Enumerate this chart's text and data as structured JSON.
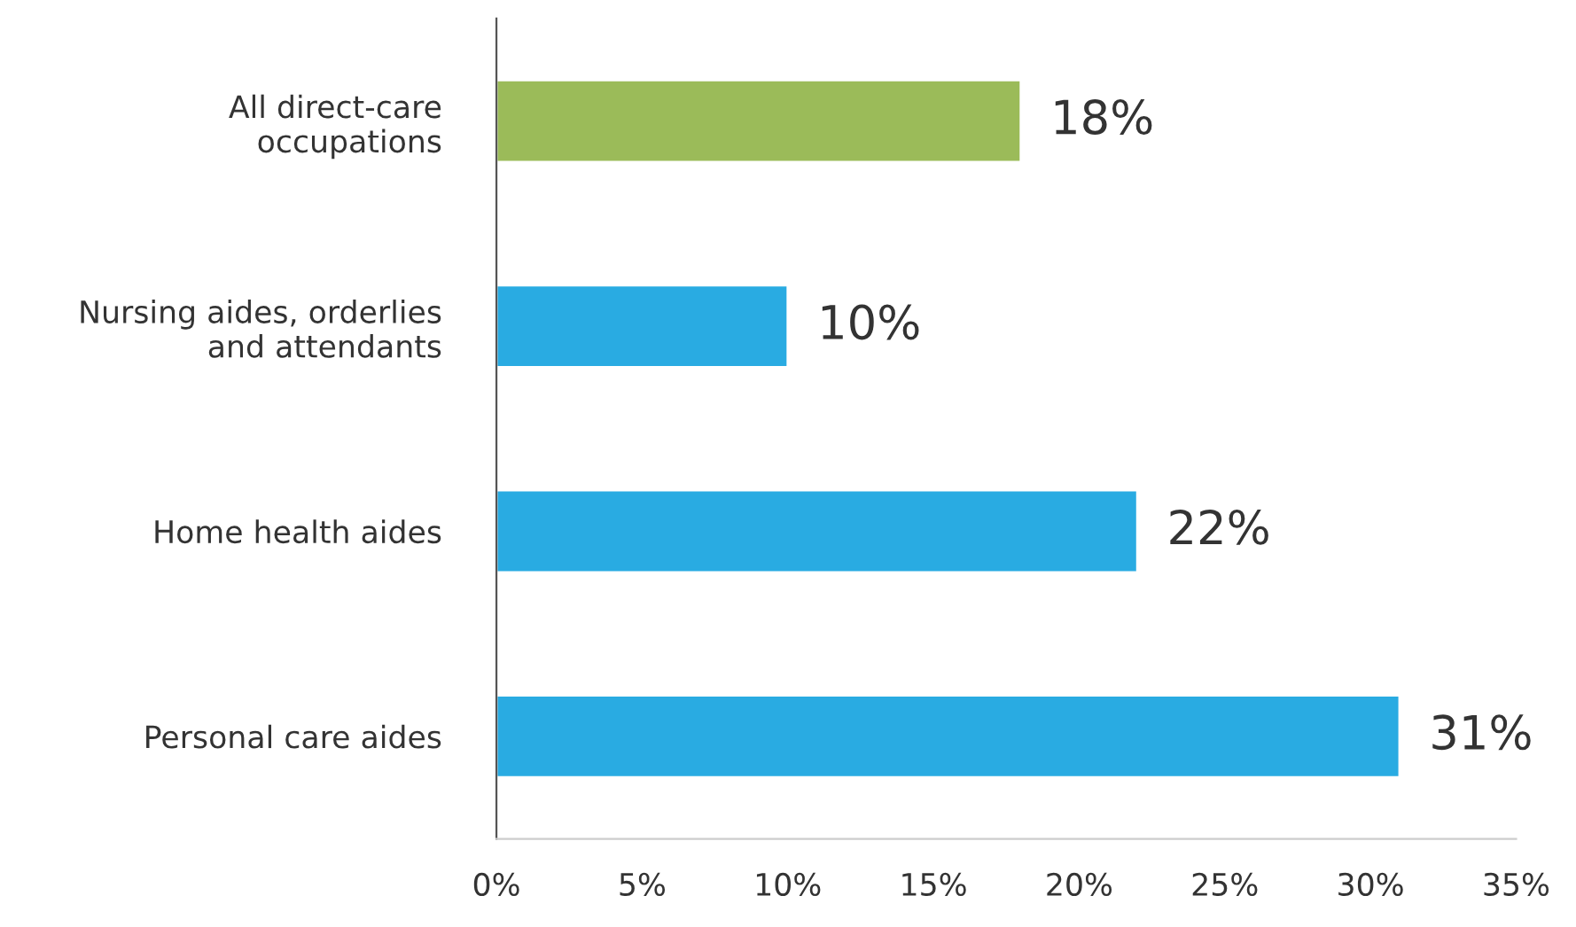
{
  "chart_data": {
    "type": "bar",
    "orientation": "horizontal",
    "categories": [
      "All direct-care\noccupations",
      "Nursing aides, orderlies\nand attendants",
      "Home health aides",
      "Personal care aides"
    ],
    "values": [
      18,
      10,
      22,
      31
    ],
    "colors": [
      "#9bbb59",
      "#29abe2",
      "#29abe2",
      "#29abe2"
    ],
    "value_labels": [
      "18%",
      "10%",
      "22%",
      "31%"
    ],
    "xlim": [
      0,
      35
    ],
    "xticks": [
      {
        "value": 0,
        "label": "0%"
      },
      {
        "value": 5,
        "label": "5%"
      },
      {
        "value": 10,
        "label": "10%"
      },
      {
        "value": 15,
        "label": "15%"
      },
      {
        "value": 20,
        "label": "20%"
      },
      {
        "value": 25,
        "label": "25%"
      },
      {
        "value": 30,
        "label": "30%"
      },
      {
        "value": 35,
        "label": "35%"
      }
    ],
    "grid": false,
    "legend": false
  }
}
